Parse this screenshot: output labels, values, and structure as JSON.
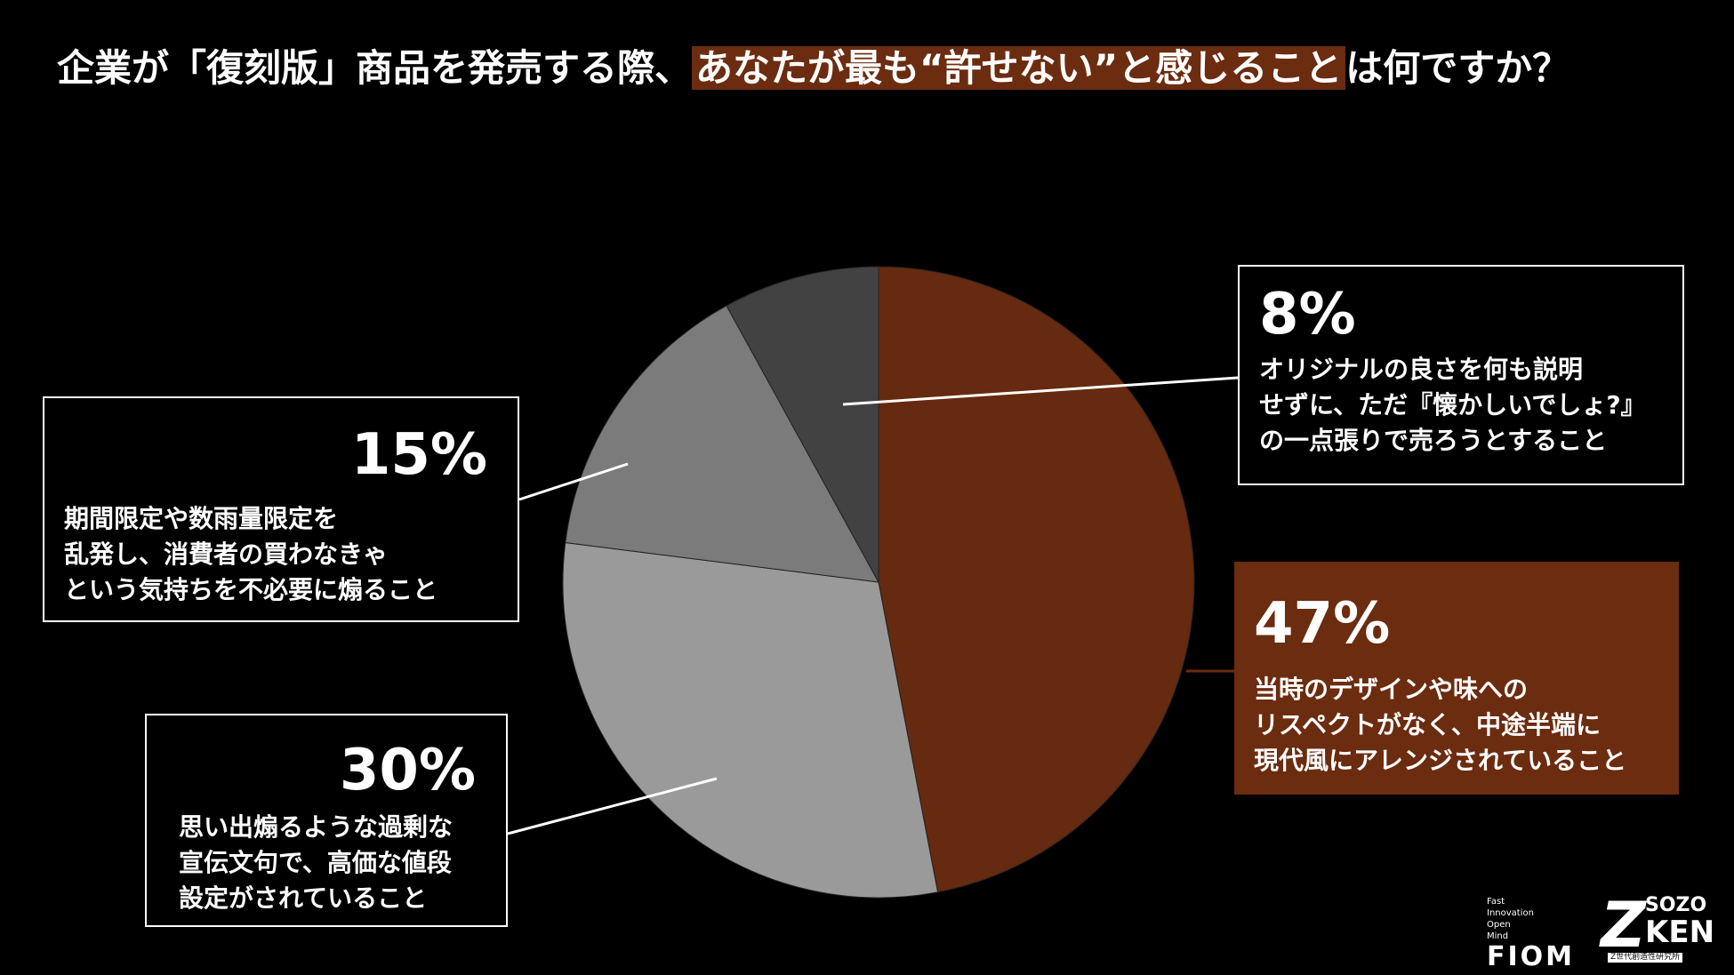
{
  "title": {
    "prefix": "企業が「復刻版」商品を発売する際、",
    "highlight": "あなたが最も“許せない”と感じること",
    "suffix": "は何ですか？"
  },
  "colors": {
    "background": "#000000",
    "accent": "#6b2c10",
    "slice_47": "#652a0f",
    "slice_30": "#9a9a9a",
    "slice_15": "#7b7b7b",
    "slice_8": "#424242"
  },
  "chart_data": {
    "type": "pie",
    "title": "企業が「復刻版」商品を発売する際、あなたが最も“許せない”と感じることは何ですか？",
    "slices": [
      {
        "label": "当時のデザインや味へのリスペクトがなく、中途半端に現代風にアレンジされていること",
        "value": 47,
        "color": "#652a0f"
      },
      {
        "label": "思い出煽るような過剰な宣伝文句で、高価な値段設定がされていること",
        "value": 30,
        "color": "#9a9a9a"
      },
      {
        "label": "期間限定や数雨量限定を乱発し、消費者の買わなきゃという気持ちを不必要に煽ること",
        "value": 15,
        "color": "#7b7b7b"
      },
      {
        "label": "オリジナルの良さを何も説明せずに、ただ『懐かしいでしょ?』の一点張りで売ろうとすること",
        "value": 8,
        "color": "#424242"
      }
    ],
    "start": "12 o'clock",
    "direction": "clockwise"
  },
  "callouts": {
    "c47": {
      "pct": "47%",
      "desc": "当時のデザインや味への\nリスペクトがなく、中途半端に\n現代風にアレンジされていること"
    },
    "c30": {
      "pct": "30%",
      "desc": "思い出煽るような過剰な\n宣伝文句で、高価な値段\n設定がされていること"
    },
    "c15": {
      "pct": "15%",
      "desc": "期間限定や数雨量限定を\n乱発し、消費者の買わなきゃ\nという気持ちを不必要に煽ること"
    },
    "c8": {
      "pct": "8%",
      "desc": "オリジナルの良さを何も説明\nせずに、ただ『懐かしいでしょ?』\nの一点張りで売ろうとすること"
    }
  },
  "logos": {
    "fiom_small": "Fast\nInnovation\nOpen\nMind",
    "fiom_big": "FIOM",
    "zken_z": "Z",
    "zken_sozo": "SOZO",
    "zken_ken": "KEN",
    "zken_sub": "Z世代創造性研究所"
  }
}
